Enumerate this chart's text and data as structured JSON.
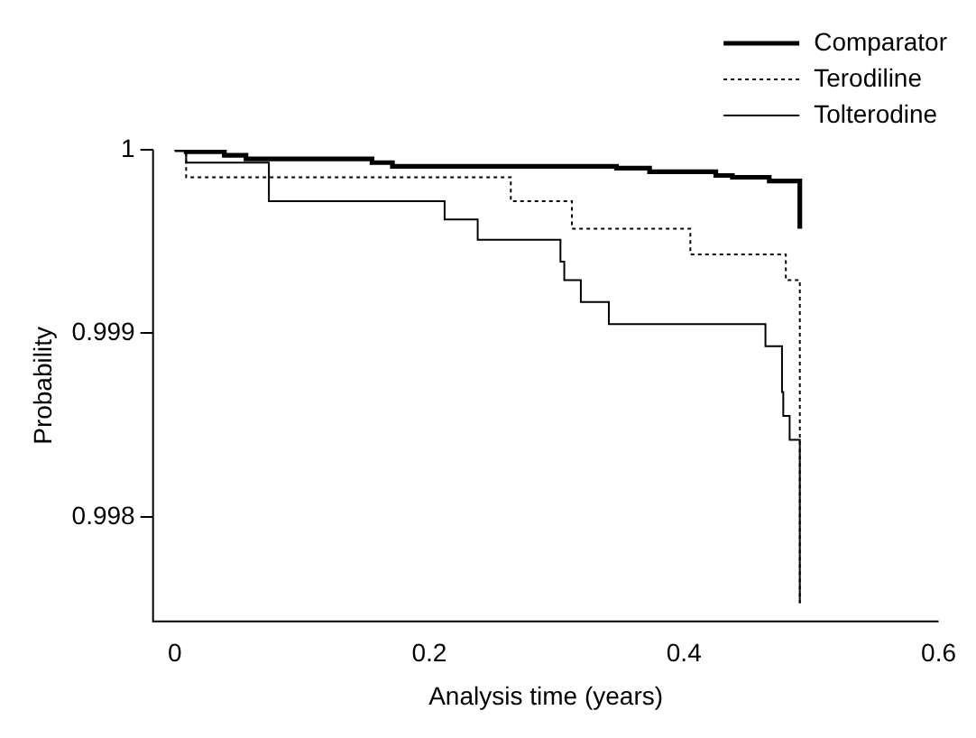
{
  "chart_data": {
    "type": "step",
    "xlabel": "Analysis time (years)",
    "ylabel": "Probability",
    "xlim": [
      -0.017,
      0.6
    ],
    "xticks": [
      0,
      0.2,
      0.4,
      0.6
    ],
    "ylim": [
      0.99743,
      1
    ],
    "yticks": [
      0.998,
      0.999,
      1
    ],
    "grid": false,
    "legend": "top right",
    "marker": "none",
    "series": [
      {
        "name": "Comparator",
        "color": "#000000",
        "line_style": "solid",
        "x": [
          0,
          0.009,
          0.039,
          0.056,
          0.155,
          0.171,
          0.347,
          0.373,
          0.425,
          0.438,
          0.467,
          0.491
        ],
        "values": [
          1,
          0.99999,
          0.99997,
          0.99995,
          0.99993,
          0.99991,
          0.9999,
          0.99988,
          0.99986,
          0.99985,
          0.99983,
          0.99957
        ]
      },
      {
        "name": "Terodiline",
        "color": "#000000",
        "line_style": "dotted",
        "x": [
          0,
          0.009,
          0.264,
          0.312,
          0.405,
          0.48,
          0.491
        ],
        "values": [
          1,
          0.99985,
          0.99972,
          0.99957,
          0.99943,
          0.99929,
          0.99753
        ]
      },
      {
        "name": "Tolterodine",
        "color": "#000000",
        "line_style": "solid",
        "x": [
          0,
          0.009,
          0.074,
          0.212,
          0.238,
          0.303,
          0.306,
          0.319,
          0.341,
          0.464,
          0.477,
          0.478,
          0.483,
          0.491
        ],
        "values": [
          1,
          0.99993,
          0.99972,
          0.99962,
          0.99951,
          0.99939,
          0.99929,
          0.99917,
          0.99905,
          0.99893,
          0.99868,
          0.99855,
          0.99842,
          0.99753
        ]
      }
    ]
  }
}
